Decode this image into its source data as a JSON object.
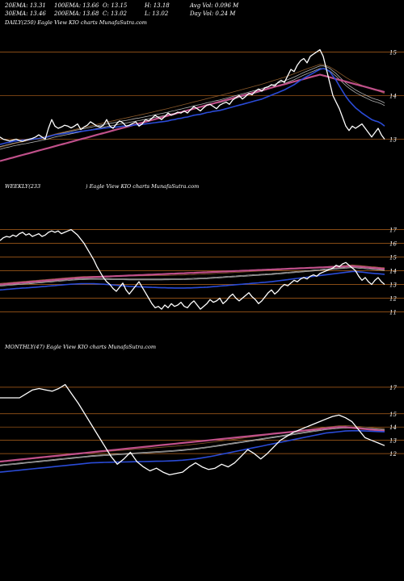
{
  "stats": {
    "row1": [
      "20EMA: 13.31",
      "100EMA: 13.66",
      "O: 13.15",
      "H: 13.18",
      "Avg Vol: 0.096  M"
    ],
    "row2": [
      "30EMA: 13.46",
      "200EMA: 13.68",
      "C: 13.02",
      "L: 13.02",
      "Day Vol: 0.24  M"
    ]
  },
  "panels": {
    "daily": {
      "label": "DAILY(250) Eagle   View  KIO charts MunafaSutra.com"
    },
    "weekly": {
      "label_left": "WEEKLY(233",
      "label_right": ") Eagle   View  KIO charts MunafaSutra.com"
    },
    "monthly": {
      "label": "MONTHLY(47) Eagle   View  KIO charts MunafaSutra.com"
    }
  },
  "colors": {
    "background": "#000000",
    "grid": "#b5651d",
    "price": "#ffffff",
    "ema_short": "#2a4bd7",
    "ema_long": "#c0508a",
    "ema_mid": "#b0b0b0",
    "ema_brown": "#8b5a2b"
  },
  "chart_data": [
    {
      "type": "line",
      "name": "daily",
      "yticks": [
        15,
        14,
        13
      ],
      "ylim": [
        12.4,
        15.45
      ],
      "x_count": 120,
      "series": [
        {
          "name": "price",
          "values": [
            13.05,
            13.0,
            12.98,
            12.96,
            12.98,
            13.0,
            12.97,
            12.95,
            12.98,
            13.0,
            13.02,
            13.05,
            13.1,
            13.05,
            13.0,
            13.25,
            13.45,
            13.3,
            13.25,
            13.28,
            13.32,
            13.3,
            13.26,
            13.3,
            13.35,
            13.22,
            13.28,
            13.32,
            13.4,
            13.35,
            13.3,
            13.28,
            13.32,
            13.45,
            13.3,
            13.25,
            13.35,
            13.42,
            13.38,
            13.3,
            13.32,
            13.36,
            13.4,
            13.3,
            13.35,
            13.45,
            13.42,
            13.48,
            13.55,
            13.5,
            13.45,
            13.52,
            13.6,
            13.55,
            13.58,
            13.62,
            13.6,
            13.65,
            13.6,
            13.68,
            13.75,
            13.7,
            13.65,
            13.72,
            13.78,
            13.8,
            13.75,
            13.7,
            13.78,
            13.82,
            13.85,
            13.8,
            13.9,
            13.95,
            14.0,
            13.92,
            13.98,
            14.05,
            14.02,
            14.1,
            14.15,
            14.1,
            14.18,
            14.2,
            14.25,
            14.22,
            14.3,
            14.35,
            14.3,
            14.45,
            14.6,
            14.55,
            14.7,
            14.8,
            14.85,
            14.75,
            14.9,
            14.95,
            15.0,
            15.05,
            14.9,
            14.6,
            14.3,
            14.0,
            13.85,
            13.7,
            13.5,
            13.3,
            13.2,
            13.3,
            13.25,
            13.3,
            13.35,
            13.25,
            13.15,
            13.05,
            13.15,
            13.25,
            13.1,
            13.0
          ]
        },
        {
          "name": "ema_short",
          "values": [
            12.88,
            12.9,
            12.92,
            12.93,
            12.95,
            12.96,
            12.97,
            12.98,
            12.98,
            12.99,
            13.0,
            13.01,
            13.02,
            13.03,
            13.04,
            13.06,
            13.08,
            13.1,
            13.11,
            13.12,
            13.13,
            13.14,
            13.15,
            13.16,
            13.17,
            13.18,
            13.19,
            13.2,
            13.21,
            13.22,
            13.23,
            13.24,
            13.25,
            13.26,
            13.27,
            13.27,
            13.28,
            13.29,
            13.3,
            13.3,
            13.31,
            13.32,
            13.33,
            13.33,
            13.34,
            13.35,
            13.36,
            13.37,
            13.38,
            13.39,
            13.4,
            13.41,
            13.42,
            13.44,
            13.45,
            13.47,
            13.48,
            13.5,
            13.51,
            13.53,
            13.55,
            13.56,
            13.57,
            13.59,
            13.61,
            13.62,
            13.64,
            13.65,
            13.66,
            13.68,
            13.7,
            13.72,
            13.74,
            13.76,
            13.78,
            13.8,
            13.82,
            13.84,
            13.86,
            13.88,
            13.9,
            13.92,
            13.95,
            13.98,
            14.01,
            14.04,
            14.07,
            14.1,
            14.13,
            14.17,
            14.21,
            14.25,
            14.3,
            14.35,
            14.4,
            14.44,
            14.48,
            14.52,
            14.56,
            14.6,
            14.62,
            14.6,
            14.55,
            14.45,
            14.35,
            14.22,
            14.1,
            13.98,
            13.88,
            13.8,
            13.72,
            13.66,
            13.6,
            13.55,
            13.5,
            13.45,
            13.42,
            13.4,
            13.36,
            13.3
          ]
        },
        {
          "name": "ema_long",
          "values": [
            12.5,
            12.52,
            12.54,
            12.56,
            12.58,
            12.6,
            12.62,
            12.64,
            12.66,
            12.68,
            12.7,
            12.72,
            12.74,
            12.76,
            12.78,
            12.8,
            12.82,
            12.84,
            12.86,
            12.88,
            12.9,
            12.92,
            12.94,
            12.96,
            12.98,
            13.0,
            13.02,
            13.04,
            13.06,
            13.08,
            13.1,
            13.12,
            13.14,
            13.16,
            13.18,
            13.2,
            13.22,
            13.24,
            13.26,
            13.28,
            13.3,
            13.32,
            13.34,
            13.36,
            13.38,
            13.4,
            13.42,
            13.44,
            13.46,
            13.48,
            13.5,
            13.52,
            13.54,
            13.56,
            13.58,
            13.6,
            13.62,
            13.64,
            13.66,
            13.68,
            13.7,
            13.72,
            13.74,
            13.76,
            13.78,
            13.8,
            13.82,
            13.84,
            13.86,
            13.88,
            13.9,
            13.92,
            13.94,
            13.96,
            13.98,
            14.0,
            14.02,
            14.04,
            14.06,
            14.08,
            14.1,
            14.12,
            14.14,
            14.16,
            14.18,
            14.2,
            14.22,
            14.24,
            14.26,
            14.28,
            14.3,
            14.32,
            14.34,
            14.36,
            14.38,
            14.4,
            14.42,
            14.44,
            14.46,
            14.48,
            14.46,
            14.44,
            14.42,
            14.4,
            14.38,
            14.36,
            14.34,
            14.32,
            14.3,
            14.28,
            14.26,
            14.24,
            14.22,
            14.2,
            14.18,
            14.16,
            14.14,
            14.12,
            14.1,
            14.08
          ]
        }
      ]
    },
    {
      "type": "line",
      "name": "weekly",
      "yticks": [
        17,
        16,
        15,
        14,
        13,
        12,
        11
      ],
      "ylim": [
        10.5,
        17.5
      ],
      "x_count": 120,
      "series": [
        {
          "name": "price",
          "values": [
            16.2,
            16.4,
            16.5,
            16.45,
            16.6,
            16.5,
            16.7,
            16.8,
            16.6,
            16.7,
            16.5,
            16.6,
            16.7,
            16.5,
            16.6,
            16.8,
            16.9,
            16.8,
            16.9,
            16.7,
            16.8,
            16.9,
            17.0,
            16.8,
            16.6,
            16.3,
            16.0,
            15.6,
            15.2,
            14.8,
            14.3,
            13.9,
            13.5,
            13.2,
            13.0,
            12.7,
            12.5,
            12.8,
            13.1,
            12.6,
            12.3,
            12.6,
            12.9,
            13.2,
            12.8,
            12.4,
            12.0,
            11.6,
            11.3,
            11.4,
            11.2,
            11.5,
            11.3,
            11.6,
            11.4,
            11.5,
            11.7,
            11.4,
            11.3,
            11.6,
            11.8,
            11.5,
            11.2,
            11.4,
            11.6,
            11.9,
            11.7,
            11.8,
            12.0,
            11.6,
            11.8,
            12.1,
            12.3,
            12.0,
            11.8,
            12.0,
            12.2,
            12.4,
            12.1,
            11.9,
            11.6,
            11.8,
            12.1,
            12.4,
            12.6,
            12.3,
            12.5,
            12.8,
            13.0,
            12.9,
            13.1,
            13.3,
            13.2,
            13.4,
            13.5,
            13.4,
            13.6,
            13.7,
            13.6,
            13.8,
            13.9,
            14.0,
            14.1,
            14.2,
            14.4,
            14.3,
            14.5,
            14.6,
            14.4,
            14.2,
            14.0,
            13.6,
            13.3,
            13.5,
            13.2,
            13.0,
            13.3,
            13.5,
            13.2,
            13.0
          ]
        },
        {
          "name": "ema_short",
          "values": [
            12.6,
            12.62,
            12.64,
            12.66,
            12.68,
            12.7,
            12.72,
            12.74,
            12.75,
            12.76,
            12.78,
            12.8,
            12.82,
            12.84,
            12.86,
            12.88,
            12.9,
            12.92,
            12.94,
            12.96,
            12.98,
            13.0,
            13.02,
            13.03,
            13.04,
            13.05,
            13.06,
            13.06,
            13.06,
            13.05,
            13.04,
            13.03,
            13.02,
            13.0,
            12.98,
            12.96,
            12.94,
            12.92,
            12.9,
            12.88,
            12.86,
            12.85,
            12.84,
            12.83,
            12.82,
            12.81,
            12.8,
            12.79,
            12.78,
            12.77,
            12.76,
            12.76,
            12.75,
            12.75,
            12.74,
            12.74,
            12.74,
            12.74,
            12.75,
            12.75,
            12.76,
            12.77,
            12.78,
            12.79,
            12.8,
            12.82,
            12.84,
            12.86,
            12.88,
            12.9,
            12.92,
            12.94,
            12.96,
            12.98,
            13.0,
            13.02,
            13.04,
            13.06,
            13.08,
            13.1,
            13.12,
            13.14,
            13.16,
            13.18,
            13.2,
            13.23,
            13.26,
            13.29,
            13.32,
            13.35,
            13.38,
            13.41,
            13.44,
            13.47,
            13.5,
            13.53,
            13.56,
            13.59,
            13.62,
            13.65,
            13.68,
            13.71,
            13.74,
            13.77,
            13.8,
            13.83,
            13.86,
            13.89,
            13.92,
            13.95,
            13.94,
            13.92,
            13.9,
            13.87,
            13.84,
            13.82,
            13.8,
            13.78,
            13.76,
            13.74
          ]
        },
        {
          "name": "ema_long",
          "values": [
            13.0,
            13.02,
            13.04,
            13.06,
            13.08,
            13.1,
            13.12,
            13.14,
            13.16,
            13.18,
            13.2,
            13.22,
            13.24,
            13.26,
            13.28,
            13.3,
            13.32,
            13.34,
            13.36,
            13.38,
            13.4,
            13.42,
            13.44,
            13.46,
            13.48,
            13.5,
            13.51,
            13.52,
            13.53,
            13.54,
            13.55,
            13.56,
            13.57,
            13.58,
            13.59,
            13.6,
            13.61,
            13.62,
            13.63,
            13.64,
            13.65,
            13.66,
            13.67,
            13.68,
            13.69,
            13.7,
            13.71,
            13.72,
            13.73,
            13.74,
            13.75,
            13.76,
            13.77,
            13.78,
            13.79,
            13.8,
            13.81,
            13.82,
            13.83,
            13.84,
            13.85,
            13.86,
            13.87,
            13.88,
            13.89,
            13.9,
            13.91,
            13.92,
            13.93,
            13.94,
            13.95,
            13.96,
            13.97,
            13.98,
            13.99,
            14.0,
            14.01,
            14.02,
            14.03,
            14.04,
            14.05,
            14.06,
            14.07,
            14.08,
            14.09,
            14.1,
            14.11,
            14.12,
            14.13,
            14.14,
            14.15,
            14.16,
            14.17,
            14.18,
            14.19,
            14.2,
            14.21,
            14.22,
            14.23,
            14.24,
            14.25,
            14.26,
            14.27,
            14.28,
            14.29,
            14.3,
            14.31,
            14.32,
            14.33,
            14.34,
            14.32,
            14.3,
            14.28,
            14.26,
            14.24,
            14.22,
            14.2,
            14.18,
            14.16,
            14.14
          ]
        }
      ]
    },
    {
      "type": "line",
      "name": "monthly",
      "yticks": [
        17,
        15,
        14,
        13,
        12
      ],
      "ylim": [
        10.0,
        17.6
      ],
      "x_count": 60,
      "series": [
        {
          "name": "price",
          "values": [
            16.2,
            16.2,
            16.2,
            16.2,
            16.5,
            16.8,
            16.9,
            16.8,
            16.7,
            16.9,
            17.2,
            16.5,
            15.8,
            15.0,
            14.2,
            13.4,
            12.6,
            11.8,
            11.2,
            11.6,
            12.1,
            11.4,
            11.0,
            10.7,
            10.9,
            10.6,
            10.4,
            10.5,
            10.6,
            11.0,
            11.3,
            11.0,
            10.8,
            10.9,
            11.2,
            11.0,
            11.3,
            11.8,
            12.3,
            12.0,
            11.6,
            12.0,
            12.5,
            13.0,
            13.3,
            13.6,
            13.8,
            14.0,
            14.2,
            14.4,
            14.6,
            14.8,
            14.9,
            14.7,
            14.4,
            13.8,
            13.2,
            13.0,
            12.8,
            12.6
          ]
        },
        {
          "name": "ema_short",
          "values": [
            10.6,
            10.65,
            10.7,
            10.75,
            10.8,
            10.85,
            10.9,
            10.95,
            11.0,
            11.05,
            11.1,
            11.15,
            11.2,
            11.25,
            11.3,
            11.32,
            11.34,
            11.35,
            11.36,
            11.37,
            11.38,
            11.39,
            11.4,
            11.41,
            11.42,
            11.43,
            11.45,
            11.47,
            11.5,
            11.55,
            11.6,
            11.68,
            11.76,
            11.85,
            11.95,
            12.05,
            12.15,
            12.25,
            12.35,
            12.45,
            12.55,
            12.65,
            12.75,
            12.85,
            12.95,
            13.05,
            13.15,
            13.25,
            13.35,
            13.45,
            13.55,
            13.6,
            13.65,
            13.7,
            13.72,
            13.72,
            13.7,
            13.68,
            13.66,
            13.64
          ]
        },
        {
          "name": "ema_long",
          "values": [
            11.4,
            11.45,
            11.5,
            11.55,
            11.6,
            11.65,
            11.7,
            11.75,
            11.8,
            11.85,
            11.9,
            11.95,
            12.0,
            12.05,
            12.1,
            12.15,
            12.2,
            12.25,
            12.3,
            12.35,
            12.4,
            12.45,
            12.5,
            12.55,
            12.6,
            12.65,
            12.7,
            12.75,
            12.8,
            12.85,
            12.9,
            12.95,
            13.0,
            13.05,
            13.1,
            13.15,
            13.2,
            13.25,
            13.3,
            13.35,
            13.4,
            13.45,
            13.5,
            13.55,
            13.6,
            13.65,
            13.7,
            13.75,
            13.8,
            13.85,
            13.9,
            13.95,
            14.0,
            14.0,
            13.95,
            13.9,
            13.85,
            13.8,
            13.75,
            13.7
          ]
        }
      ]
    }
  ]
}
